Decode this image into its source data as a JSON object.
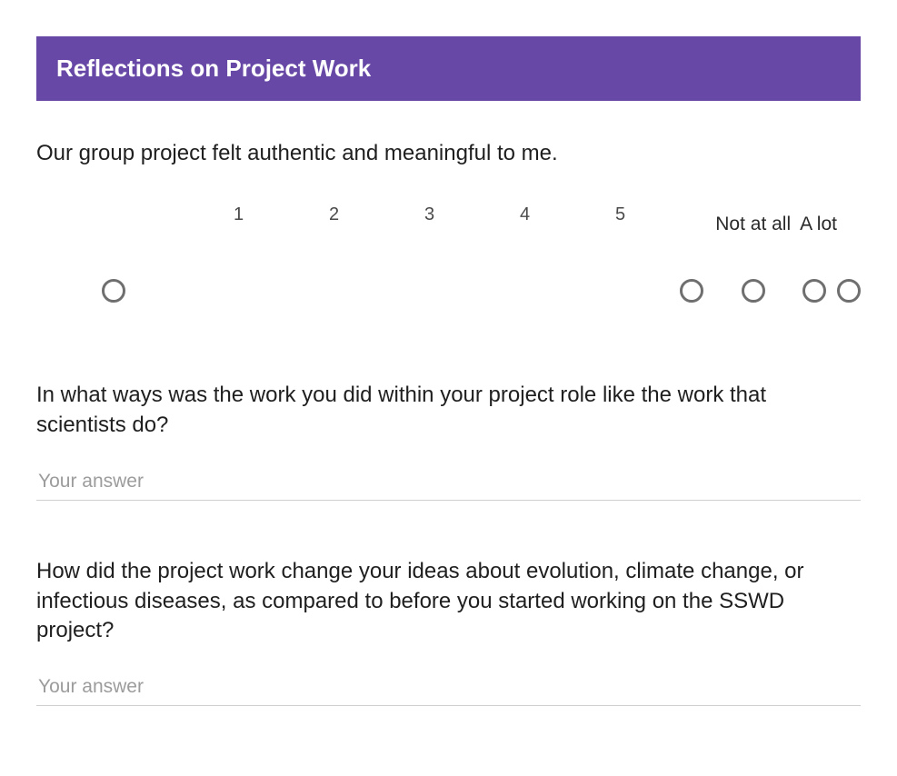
{
  "colors": {
    "header_bg": "#6848a6",
    "header_text": "#ffffff",
    "question_text": "#1f1f1f",
    "scale_number": "#4a4a4a",
    "radio_border": "#6f6f6f",
    "likert_bg": "#fafafa",
    "input_border": "#cfcfcf",
    "placeholder": "#9c9c9c"
  },
  "typography": {
    "header_fontsize": 26,
    "question_fontsize": 24,
    "scale_fontsize": 20,
    "endlabel_fontsize": 21,
    "placeholder_fontsize": 21
  },
  "header": {
    "title": "Reflections on Project Work"
  },
  "questions": {
    "q1": {
      "type": "likert",
      "prompt": "Our group project felt authentic and meaningful to me.",
      "low_label": "Not at all",
      "high_label": "A lot",
      "scale": [
        "1",
        "2",
        "3",
        "4",
        "5"
      ],
      "selected": null
    },
    "q2": {
      "type": "short_answer",
      "prompt": "In what ways was the work you did within your project role like the work that scientists do?",
      "placeholder": "Your answer",
      "value": ""
    },
    "q3": {
      "type": "short_answer",
      "prompt": "How did the project work change your ideas about evolution, climate change, or infectious diseases, as compared to before you started working on the SSWD project?",
      "placeholder": "Your answer",
      "value": ""
    }
  }
}
